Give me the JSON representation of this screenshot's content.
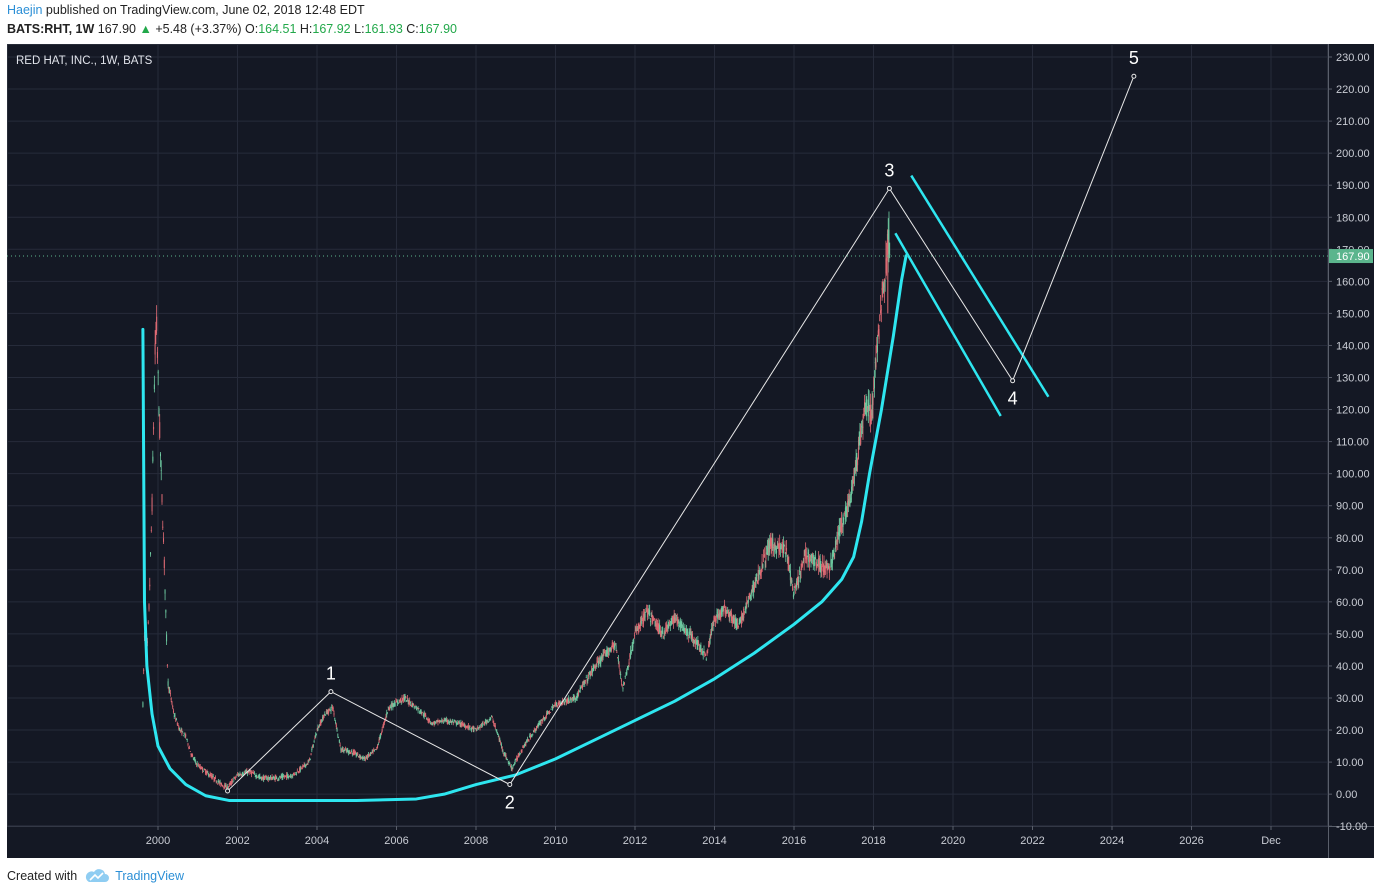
{
  "header": {
    "author": "Haejin",
    "published_text": "published on TradingView.com, June 02, 2018 12:48 EDT",
    "symbol": "BATS:RHT, 1W",
    "price": "167.90",
    "change": "+5.48 (+3.37%)",
    "open_label": "O:",
    "open": "164.51",
    "high_label": "H:",
    "high": "167.92",
    "low_label": "L:",
    "low": "161.93",
    "close_label": "C:",
    "close": "167.90"
  },
  "footer": {
    "created_with": "Created with",
    "brand": "TradingView"
  },
  "colors": {
    "background": "#141824",
    "grid": "#262b3a",
    "up_candle": "#6ec9a0",
    "down_candle": "#e06b74",
    "channel": "#2ee6f0",
    "wave": "#e8e8e8",
    "price_tag": "#5bb58d"
  },
  "chart_data": {
    "type": "candlestick",
    "title": "RED HAT, INC., 1W, BATS",
    "ylim": [
      -10,
      230
    ],
    "y_ticks": [
      "230.00",
      "220.00",
      "210.00",
      "200.00",
      "190.00",
      "180.00",
      "170.00",
      "160.00",
      "150.00",
      "140.00",
      "130.00",
      "120.00",
      "110.00",
      "100.00",
      "90.00",
      "80.00",
      "70.00",
      "60.00",
      "50.00",
      "40.00",
      "30.00",
      "20.00",
      "10.00",
      "0.00",
      "-10.00"
    ],
    "x_ticks": [
      {
        "label": "2000",
        "t": 2000.0
      },
      {
        "label": "2002",
        "t": 2002.0
      },
      {
        "label": "2004",
        "t": 2004.0
      },
      {
        "label": "2006",
        "t": 2006.0
      },
      {
        "label": "2008",
        "t": 2008.0
      },
      {
        "label": "2010",
        "t": 2010.0
      },
      {
        "label": "2012",
        "t": 2012.0
      },
      {
        "label": "2014",
        "t": 2014.0
      },
      {
        "label": "2016",
        "t": 2016.0
      },
      {
        "label": "2018",
        "t": 2018.0
      },
      {
        "label": "2020",
        "t": 2020.0
      },
      {
        "label": "2022",
        "t": 2022.0
      },
      {
        "label": "2024",
        "t": 2024.0
      },
      {
        "label": "2026",
        "t": 2026.0
      },
      {
        "label": "Dec",
        "t": 2028.0
      }
    ],
    "last_price": 167.9,
    "price_path": [
      [
        1999.62,
        28
      ],
      [
        1999.67,
        55
      ],
      [
        1999.72,
        42
      ],
      [
        1999.78,
        60
      ],
      [
        1999.85,
        90
      ],
      [
        1999.92,
        135
      ],
      [
        1999.96,
        148
      ],
      [
        2000.05,
        110
      ],
      [
        2000.15,
        75
      ],
      [
        2000.25,
        35
      ],
      [
        2000.4,
        25
      ],
      [
        2000.55,
        20
      ],
      [
        2000.7,
        18
      ],
      [
        2000.85,
        12
      ],
      [
        2001.0,
        9
      ],
      [
        2001.2,
        7
      ],
      [
        2001.4,
        5
      ],
      [
        2001.6,
        3
      ],
      [
        2001.75,
        2
      ],
      [
        2002.0,
        6
      ],
      [
        2002.3,
        7
      ],
      [
        2002.6,
        5
      ],
      [
        2003.0,
        5
      ],
      [
        2003.4,
        6
      ],
      [
        2003.8,
        10
      ],
      [
        2004.0,
        20
      ],
      [
        2004.2,
        25
      ],
      [
        2004.4,
        27
      ],
      [
        2004.6,
        14
      ],
      [
        2004.9,
        13
      ],
      [
        2005.2,
        11
      ],
      [
        2005.5,
        14
      ],
      [
        2005.8,
        27
      ],
      [
        2006.2,
        30
      ],
      [
        2006.6,
        26
      ],
      [
        2006.9,
        22
      ],
      [
        2007.2,
        23
      ],
      [
        2007.6,
        22
      ],
      [
        2008.0,
        20
      ],
      [
        2008.4,
        24
      ],
      [
        2008.7,
        13
      ],
      [
        2008.9,
        8
      ],
      [
        2009.2,
        15
      ],
      [
        2009.6,
        22
      ],
      [
        2010.0,
        28
      ],
      [
        2010.5,
        30
      ],
      [
        2011.0,
        40
      ],
      [
        2011.5,
        47
      ],
      [
        2011.7,
        33
      ],
      [
        2012.0,
        50
      ],
      [
        2012.3,
        57
      ],
      [
        2012.7,
        50
      ],
      [
        2013.0,
        55
      ],
      [
        2013.5,
        48
      ],
      [
        2013.8,
        43
      ],
      [
        2014.0,
        55
      ],
      [
        2014.3,
        58
      ],
      [
        2014.6,
        52
      ],
      [
        2015.0,
        65
      ],
      [
        2015.4,
        78
      ],
      [
        2015.8,
        76
      ],
      [
        2016.0,
        62
      ],
      [
        2016.3,
        75
      ],
      [
        2016.6,
        72
      ],
      [
        2016.9,
        70
      ],
      [
        2017.1,
        80
      ],
      [
        2017.4,
        92
      ],
      [
        2017.6,
        105
      ],
      [
        2017.8,
        122
      ],
      [
        2017.95,
        118
      ],
      [
        2018.1,
        140
      ],
      [
        2018.2,
        155
      ],
      [
        2018.3,
        163
      ],
      [
        2018.38,
        175
      ],
      [
        2018.42,
        168
      ]
    ],
    "lower_curve": [
      [
        1999.62,
        145
      ],
      [
        1999.66,
        60
      ],
      [
        1999.72,
        40
      ],
      [
        1999.85,
        25
      ],
      [
        2000.0,
        15
      ],
      [
        2000.3,
        8
      ],
      [
        2000.7,
        3
      ],
      [
        2001.2,
        -0.5
      ],
      [
        2001.8,
        -2
      ],
      [
        2003.0,
        -2
      ],
      [
        2005.0,
        -2
      ],
      [
        2006.5,
        -1.5
      ],
      [
        2007.2,
        0
      ],
      [
        2008.0,
        3
      ],
      [
        2009.0,
        6
      ],
      [
        2010.0,
        11
      ],
      [
        2011.0,
        17
      ],
      [
        2012.0,
        23
      ],
      [
        2013.0,
        29
      ],
      [
        2014.0,
        36
      ],
      [
        2015.0,
        44
      ],
      [
        2016.0,
        53
      ],
      [
        2016.7,
        60
      ],
      [
        2017.2,
        67
      ],
      [
        2017.5,
        74
      ],
      [
        2017.7,
        85
      ],
      [
        2017.9,
        100
      ],
      [
        2018.2,
        120
      ],
      [
        2018.5,
        143
      ],
      [
        2018.7,
        160
      ],
      [
        2018.82,
        168
      ]
    ],
    "channel_lines": [
      [
        [
          2018.55,
          175
        ],
        [
          2021.2,
          118
        ]
      ],
      [
        [
          2018.95,
          193
        ],
        [
          2022.4,
          124
        ]
      ]
    ],
    "wave_points": [
      {
        "label": "1",
        "t": 2004.35,
        "y": 32
      },
      {
        "label": "2",
        "t": 2008.85,
        "y": 3
      },
      {
        "label": "3",
        "t": 2018.4,
        "y": 189
      },
      {
        "label": "4",
        "t": 2021.5,
        "y": 129
      },
      {
        "label": "5",
        "t": 2024.55,
        "y": 224
      }
    ],
    "wave_start": {
      "t": 2001.75,
      "y": 1
    }
  }
}
